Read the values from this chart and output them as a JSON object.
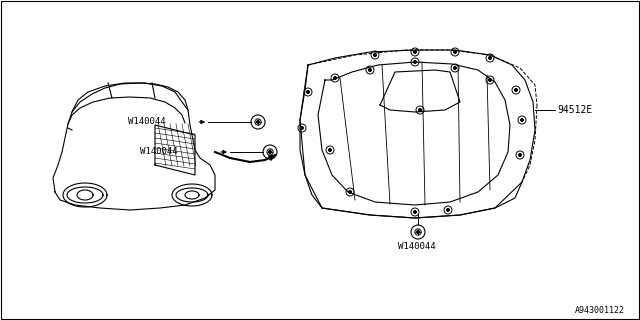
{
  "background_color": "#ffffff",
  "border_color": "#000000",
  "part_number_94512E": "94512E",
  "part_number_W140044": "W140044",
  "diagram_id": "A943001122",
  "line_color": "#000000",
  "line_width": 0.8
}
